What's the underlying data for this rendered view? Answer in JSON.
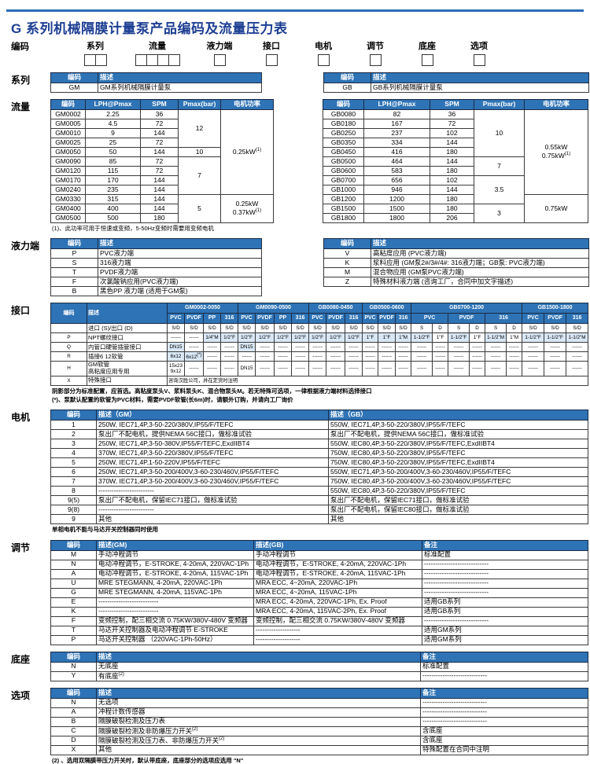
{
  "page_title": "G 系列机械隔膜计量泵产品编码及流量压力表",
  "colors": {
    "header_blue": "#2e73b5",
    "shade_blue": "#d9e7f5",
    "title_blue": "#1d3e92",
    "rule_blue": "#2a6cb8"
  },
  "coding": {
    "label": "编码",
    "fields": [
      {
        "label": "系列",
        "boxes": 2
      },
      {
        "label": "流量",
        "boxes": 4
      },
      {
        "label": "液力端",
        "boxes": 1
      },
      {
        "label": "接口",
        "boxes": 1
      },
      {
        "label": "电机",
        "boxes": 1
      },
      {
        "label": "调节",
        "boxes": 1
      },
      {
        "label": "底座",
        "boxes": 1
      },
      {
        "label": "选项",
        "boxes": 1
      }
    ]
  },
  "sections": {
    "series": {
      "label": "系列",
      "left": {
        "widths": [
          60,
          208
        ],
        "headers": [
          "编码",
          {
            "t": "描述",
            "a": "l"
          }
        ],
        "rows": [
          [
            "GM",
            "GM系列机械隔膜计量泵"
          ]
        ]
      },
      "right": {
        "widths": [
          60,
          277
        ],
        "headers": [
          "编码",
          {
            "t": "描述",
            "a": "l"
          }
        ],
        "rows": [
          [
            "GB",
            "GB系列机械隔膜计量泵"
          ]
        ]
      }
    },
    "flow": {
      "label": "流量",
      "left": {
        "widths": [
          44,
          70,
          48,
          54,
          67
        ],
        "headers": [
          "编码",
          "LPH@Pmax",
          "SPM",
          "Pmax(bar)",
          "电机功率"
        ],
        "rows": [
          [
            "GM0002",
            "2.25",
            "36",
            {
              "t": "12",
              "rs": 4
            },
            {
              "t": "0.25kW",
              "sup": "(1)",
              "rs": 9
            }
          ],
          [
            "GM0005",
            "4.5",
            "72"
          ],
          [
            "GM0010",
            "9",
            "144"
          ],
          [
            "GM0025",
            "25",
            "72"
          ],
          [
            "GM0050",
            "50",
            "144",
            "10"
          ],
          [
            "GM0090",
            "85",
            "72",
            {
              "t": "7",
              "rs": 4
            }
          ],
          [
            "GM0120",
            "115",
            "72"
          ],
          [
            "GM0170",
            "170",
            "144"
          ],
          [
            "GM0240",
            "235",
            "144"
          ],
          [
            "GM0330",
            "315",
            "144",
            {
              "t": "5",
              "rs": 3
            },
            {
              "t": "0.25kW\n0.37kW",
              "sup": "(1)",
              "rs": 3
            }
          ],
          [
            "GM0400",
            "400",
            "144"
          ],
          [
            "GM0500",
            "500",
            "180"
          ]
        ]
      },
      "right": {
        "widths": [
          52,
          84,
          56,
          64,
          81
        ],
        "headers": [
          "编码",
          "LPH@Pmax",
          "SPM",
          "Pmax(bar)",
          "电机功率"
        ],
        "rows": [
          [
            "GB0080",
            "82",
            "36",
            {
              "t": "10",
              "rs": 5
            },
            {
              "t": "0.55kW\n0.75kW",
              "sup": "(1)",
              "rs": 9
            }
          ],
          [
            "GB0180",
            "167",
            "72"
          ],
          [
            "GB0250",
            "237",
            "102"
          ],
          [
            "GB0350",
            "334",
            "144"
          ],
          [
            "GB0450",
            "416",
            "180"
          ],
          [
            "GB0500",
            "464",
            "144",
            {
              "t": "7",
              "rs": 2
            }
          ],
          [
            "GB0600",
            "583",
            "180"
          ],
          [
            "GB0700",
            "656",
            "102",
            {
              "t": "3.5",
              "rs": 3
            }
          ],
          [
            "GB1000",
            "946",
            "144"
          ],
          [
            "GB1200",
            "1200",
            "180",
            {
              "t": "0.75kW",
              "rs": 3
            }
          ],
          [
            "GB1500",
            "1500",
            "180",
            {
              "t": "3",
              "rs": 2
            }
          ],
          [
            "GB1800",
            "1800",
            "206"
          ]
        ]
      },
      "note": "(1)、此功率可用于恒速或变频，5-50Hz变频时需要用变频电机"
    },
    "liquid": {
      "label": "液力端",
      "left": {
        "widths": [
          60,
          208
        ],
        "headers": [
          "编码",
          {
            "t": "描述",
            "a": "l"
          }
        ],
        "rows": [
          [
            "P",
            "PVC液力端"
          ],
          [
            "S",
            "316液力端"
          ],
          [
            "T",
            "PVDF液力端"
          ],
          [
            "F",
            "次氯酸钠应用(PVC液力端)"
          ],
          [
            "B",
            "黑色PP 液力端 (适用于GM泵)"
          ]
        ]
      },
      "right": {
        "widths": [
          60,
          277
        ],
        "headers": [
          "编码",
          {
            "t": "描述",
            "a": "l"
          }
        ],
        "rows": [
          [
            "V",
            "高粘度应用 (PVC液力端)"
          ],
          [
            "K",
            "浆料应用 (GM泵2#/3#/4#: 316液力端；GB泵: PVC液力端)"
          ],
          [
            "M",
            "混合物应用 (GM泵PVC液力端)"
          ],
          [
            "Z",
            "特殊材料液力端 (咨询工厂，合同中加文字描述)"
          ]
        ]
      }
    },
    "iface": {
      "label": "接口",
      "table": {
        "widths": [
          46,
          102,
          22,
          24,
          22,
          22,
          22,
          24,
          22,
          22,
          22,
          24,
          22,
          20,
          22,
          20,
          27,
          20,
          27,
          20,
          27,
          20,
          28,
          28,
          28
        ],
        "header_rows": [
          [
            {
              "t": "编码",
              "rs": 2
            },
            {
              "t": "描述",
              "rs": 2,
              "a": "l"
            },
            {
              "t": "GM0002-0050",
              "cs": 4
            },
            {
              "t": "GM0090-0500",
              "cs": 4
            },
            {
              "t": "GB0080-0450",
              "cs": 3
            },
            {
              "t": "GB0500-0600",
              "cs": 3
            },
            {
              "t": "GB0700-1200",
              "cs": 6
            },
            {
              "t": "GB1500-1800",
              "cs": 3
            }
          ],
          [
            "PVC",
            "PVDF",
            "PP",
            "316",
            "PVC",
            "PVDF",
            "PP",
            "316",
            "PVC",
            "PVDF",
            "316",
            "PVC",
            "PVDF",
            "316",
            {
              "t": "PVC",
              "cs": 2
            },
            {
              "t": "PVDF",
              "cs": 2
            },
            {
              "t": "316",
              "cs": 2
            },
            "PVC",
            "PVDF",
            "316"
          ]
        ],
        "rows": [
          [
            "",
            "进口 (S)/出口 (D)",
            "S/D",
            "S/D",
            "S/D",
            "S/D",
            "S/D",
            "S/D",
            "S/D",
            "S/D",
            "S/D",
            "S/D",
            "S/D",
            "S/D",
            "S/D",
            "S/D",
            "S",
            "D",
            "S",
            "D",
            "S",
            "D",
            "S/D",
            "S/D",
            "S/D"
          ],
          [
            "P",
            "NPT螺纹接口",
            "------",
            "------",
            {
              "t": "1/4\"M",
              "s": 1
            },
            {
              "t": "1/2\"F",
              "s": 1
            },
            {
              "t": "1/2\"F",
              "s": 1
            },
            {
              "t": "1/2\"F",
              "s": 1
            },
            {
              "t": "1/2\"F",
              "s": 1
            },
            {
              "t": "1/2\"F",
              "s": 1
            },
            {
              "t": "1/2\"F",
              "s": 1
            },
            {
              "t": "1/2\"F",
              "s": 1
            },
            {
              "t": "1/2\"F",
              "s": 1
            },
            {
              "t": "1\"F",
              "s": 1
            },
            {
              "t": "1\"F",
              "s": 1
            },
            {
              "t": "1\"M",
              "s": 1
            },
            {
              "t": "1-1/2\"F",
              "s": 1
            },
            "1\"F",
            {
              "t": "1-1/2\"F",
              "s": 1
            },
            "1\"F",
            {
              "t": "1-1/2\"M",
              "s": 1
            },
            "1\"M",
            {
              "t": "1-1/2\"F",
              "s": 1
            },
            {
              "t": "1-1/2\"F",
              "s": 1
            },
            {
              "t": "1-1/2\"M",
              "s": 1
            }
          ],
          [
            "Q",
            "内管口硬管插管接口",
            {
              "t": "DN15",
              "s": 1
            },
            "------",
            "------",
            "------",
            {
              "t": "DN15",
              "s": 1
            },
            "------",
            "------",
            "------",
            "------",
            "------",
            "------",
            "------",
            "------",
            "------",
            "------",
            "------",
            "------",
            "------",
            "------",
            "------",
            "------",
            "------",
            "------"
          ],
          [
            "R",
            "插接6  12软管",
            {
              "t": "6x12",
              "s": 1
            },
            {
              "t": "6x12",
              "sup": "(*)",
              "s": 1
            },
            "------",
            "------",
            "------",
            "------",
            "------",
            "------",
            "------",
            "------",
            "------",
            "------",
            "------",
            "------",
            "------",
            "------",
            "------",
            "------",
            "------",
            "------",
            "------",
            "------",
            "------"
          ],
          [
            "H",
            "GM软管\n高粘度应用专用",
            {
              "t": "15x23\n9x12"
            },
            "------",
            "------",
            "------",
            "DN15",
            "------",
            "------",
            "------",
            "------",
            "------",
            "------",
            "------",
            "------",
            "------",
            "------",
            "------",
            "------",
            "------",
            "------",
            "------",
            "------",
            "------",
            "------"
          ],
          [
            "X",
            "特殊接口",
            {
              "t": "咨询汉胜公司，并在定货时注明",
              "cs": 23,
              "a": "l"
            }
          ]
        ]
      },
      "notes": [
        "阴影部分为标准配置，应首选。高粘度泵头V、浆料泵头K、混合物泵头M。若无特殊可选项，一律根据液力端材料选择接口",
        "(*)、泵默认配置的软管为PVC材料，需要PVDF软管(长6m)时，请额外订购，并请向工厂询价"
      ]
    },
    "motor": {
      "label": "电机",
      "table": {
        "widths": [
          58,
          295,
          330
        ],
        "headers": [
          "编码",
          {
            "t": "描述（GM）",
            "a": "l"
          },
          {
            "t": "描述（GB）",
            "a": "l"
          }
        ],
        "rows": [
          [
            "1",
            "250W, IEC71,4P,3-50-220/380V,IP55/F/TEFC",
            "550W, IEC71,4P,3-50-220/380V,IP55/F/TEFC"
          ],
          [
            "2",
            "泵出厂不配电机，提供NEMA 56C接口，做标准试验",
            "泵出厂不配电机，提供NEMA 56C接口，做标准试验"
          ],
          [
            "3",
            "250W, IEC71,4P,3-50-380V,IP55/F/TEFC,ExdIIBT4",
            "550W, IEC80,4P,3-50-220/380V,IP55/F/TEFC,ExdIIBT4"
          ],
          [
            "4",
            "370W, IEC71,4P,3-50-220/380V,IP55/F/TEFC",
            "750W, IEC80,4P,3-50-220/380V,IP55/F/TEFC"
          ],
          [
            "5",
            "250W, IEC71,4P,1-50-220V,IP55/F/TEFC",
            "750W, IEC80,4P,3-50-220/380V,IP55/F/TEFC,ExdIIBT4"
          ],
          [
            "6",
            "250W, IEC71,4P,3-50-200/400V,3-60-230/460V,IP55/F/TEFC",
            "550W, IEC71,4P,3-50-200/400V,3-60-230/460V,IP55/F/TEFC"
          ],
          [
            "7",
            "370W, IEC71,4P,3-50-200/400V,3-60-230/460V,IP55/F/TEFC",
            "750W, IEC80,4P,3-50-200/400V,3-60-230/460V,IP55/F/TEFC"
          ],
          [
            "8",
            "-------------------------",
            "550W, IEC80,4P,3-50-220/380V,IP55/F/TEFC"
          ],
          [
            "9(5)",
            "泵出厂不配电机，保留IEC71接口，做标准试验",
            "泵出厂不配电机，保留IEC71接口，做标准试验"
          ],
          [
            "9(8)",
            "-------------------------",
            "泵出厂不配电机，保留IEC80接口，做标准试验"
          ],
          [
            "9",
            "其他",
            "其他"
          ]
        ]
      },
      "note": "单相电机不能与马达开关控制器同时使用"
    },
    "adjust": {
      "label": "调节",
      "table": {
        "widths": [
          58,
          200,
          214,
          211
        ],
        "headers": [
          "编码",
          {
            "t": "描述(GM)",
            "a": "l"
          },
          {
            "t": "描述(GB)",
            "a": "l"
          },
          {
            "t": "备注",
            "a": "l"
          }
        ],
        "rows": [
          [
            "M",
            "手动冲程调节",
            "手动冲程调节",
            "标准配置"
          ],
          [
            "N",
            "电动冲程调节，E-STROKE, 4-20mA, 220VAC-1Ph",
            "电动冲程调节，E-STROKE, 4-20mA, 220VAC-1Ph",
            "-----------------------------"
          ],
          [
            "A",
            "电动冲程调节，E-STROKE, 4-20mA, 115VAC-1Ph",
            "电动冲程调节，E-STROKE, 4-20mA, 115VAC-1Ph",
            "-----------------------------"
          ],
          [
            "U",
            "MRE STEGMANN, 4-20mA, 220VAC-1Ph",
            "MRA ECC, 4~20mA, 220VAC-1Ph",
            "-----------------------------"
          ],
          [
            "G",
            "MRE STEGMANN, 4-20mA, 115VAC-1Ph",
            "MRA ECC, 4~20mA, 115VAC-1Ph",
            "-----------------------------"
          ],
          [
            "E",
            "---------------------------",
            "MRA ECC, 4-20mA, 220VAC-1Ph, Ex. Proof",
            "适用GB系列"
          ],
          [
            "K",
            "---------------------------",
            "MRA ECC, 4-20mA, 115VAC-2Ph, Ex. Proof",
            "适用GB系列"
          ],
          [
            "F",
            "变频控制，配三相交流 0.75KW/380V-480V 变频器",
            "变频控制，配三相交流 0.75KW/380V-480V 变频器",
            "-----------------------------"
          ],
          [
            "T",
            "马达开关控制器及电动冲程调节 E-STROKE",
            "--------------------",
            "适用GM系列"
          ],
          [
            "P",
            "马达开关控制器 （220VAC-1Ph-50Hz）",
            "--------------------",
            "适用GM系列"
          ]
        ]
      }
    },
    "base": {
      "label": "底座",
      "table": {
        "widths": [
          58,
          412,
          213
        ],
        "headers": [
          "编码",
          {
            "t": "描述",
            "a": "l"
          },
          {
            "t": "备注",
            "a": "l"
          }
        ],
        "rows": [
          [
            "N",
            "无底座",
            "标准配置"
          ],
          [
            "Y",
            {
              "t": "有底座",
              "sup": "(2)"
            },
            "-----------------------------"
          ]
        ]
      }
    },
    "options": {
      "label": "选项",
      "table": {
        "widths": [
          58,
          412,
          213
        ],
        "headers": [
          "编码",
          {
            "t": "描述",
            "a": "l"
          },
          {
            "t": "备注",
            "a": "l"
          }
        ],
        "rows": [
          [
            "N",
            "无选项",
            "-----------------------------"
          ],
          [
            "A",
            "冲程计数传感器",
            "-----------------------------"
          ],
          [
            "B",
            "隔膜破裂检测及压力表",
            "-----------------------------"
          ],
          [
            "C",
            {
              "t": "隔膜破裂检测及非防爆压力开关",
              "sup": "(2)"
            },
            "含底座"
          ],
          [
            "D",
            {
              "t": "隔膜破裂检测及压力表、非防爆压力开关",
              "sup": "(2)"
            },
            "含底座"
          ],
          [
            "X",
            "其他",
            "特殊配置在合同中注明"
          ]
        ]
      },
      "note": "(2) 、选用双隔膜带压力开关时，默认带底座，底座部分的选项应选用 \"N\""
    }
  }
}
